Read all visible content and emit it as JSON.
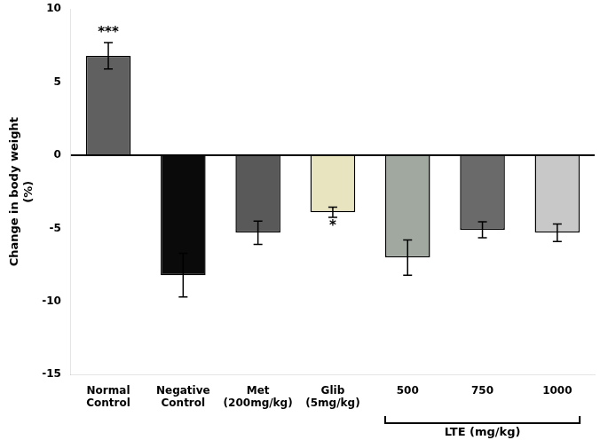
{
  "chart_data": {
    "type": "bar",
    "categories": [
      "Normal\nControl",
      "Negative\nControl",
      "Met\n(200mg/kg)",
      "Glib\n(5mg/kg)",
      "500",
      "750",
      "1000"
    ],
    "values": [
      6.8,
      -8.2,
      -5.3,
      -3.9,
      -7.0,
      -5.1,
      -5.3
    ],
    "errors": [
      0.9,
      1.5,
      0.8,
      0.35,
      1.2,
      0.55,
      0.6
    ],
    "colors": [
      "#606060",
      "#0a0a0a",
      "#595959",
      "#e8e4c0",
      "#a0a8a0",
      "#6a6a6a",
      "#c8c8c8"
    ],
    "ylabel": "Change in body weight\n(%)",
    "ylim": [
      -15,
      10
    ],
    "yticks": [
      -15,
      -10,
      -5,
      0,
      5,
      10
    ],
    "grid": false,
    "annotations": [
      {
        "text": "***",
        "category": "Normal\nControl"
      },
      {
        "text": "*",
        "category": "Glib\n(5mg/kg)"
      },
      {
        "text": "LTE (mg/kg)",
        "from": "500",
        "to": "1000"
      }
    ]
  }
}
